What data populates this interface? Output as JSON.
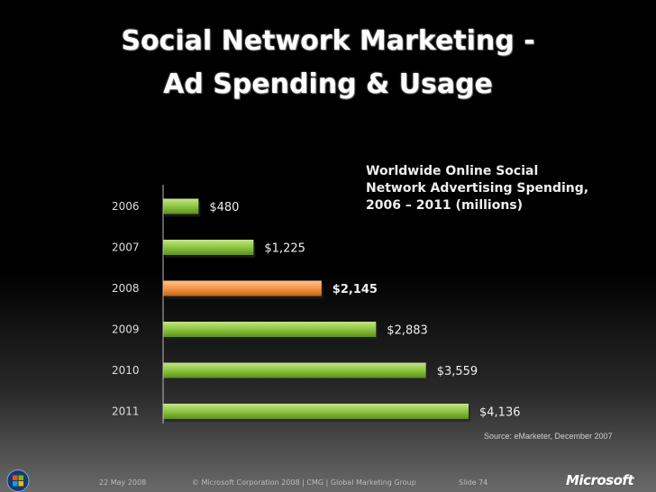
{
  "slide": {
    "title_line1": "Social Network Marketing -",
    "title_line2": "Ad Spending & Usage",
    "source": "Source: eMarketer, December 2007",
    "footer_date": "22 May 2008",
    "footer_copyright": "© Microsoft Corporation 2008 | CMG | Global Marketing Group",
    "footer_slide": "Slide 74",
    "brand": "Microsoft"
  },
  "chart_data": {
    "type": "bar",
    "orientation": "horizontal",
    "title_lines": [
      "Worldwide Online Social",
      "Network Advertising Spending,",
      "2006 – 2011 (millions)"
    ],
    "categories": [
      "2006",
      "2007",
      "2008",
      "2009",
      "2010",
      "2011"
    ],
    "values": [
      480,
      1225,
      2145,
      2883,
      3559,
      4136
    ],
    "data_labels": [
      "$480",
      "$1,225",
      "$2,145",
      "$2,883",
      "$3,559",
      "$4,136"
    ],
    "highlight_index": 2,
    "colors": {
      "bar": "#8cc63f",
      "highlight": "#f79646"
    },
    "xlim": [
      0,
      4136
    ],
    "grid": false,
    "legend": "none"
  },
  "icons": {
    "windows": "windows-logo-icon"
  }
}
